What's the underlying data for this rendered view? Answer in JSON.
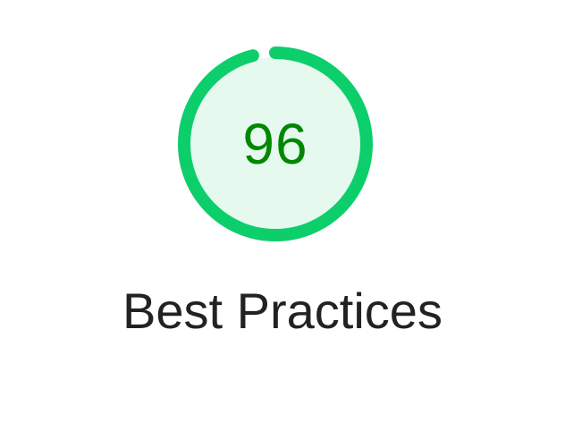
{
  "report": {
    "score": "96",
    "score_fraction": 0.96,
    "category": "Best Practices"
  },
  "colors": {
    "pass_ring": "#0cce6b",
    "pass_fill": "#e6f9ef",
    "pass_text": "#008800",
    "title_text": "#222222"
  }
}
